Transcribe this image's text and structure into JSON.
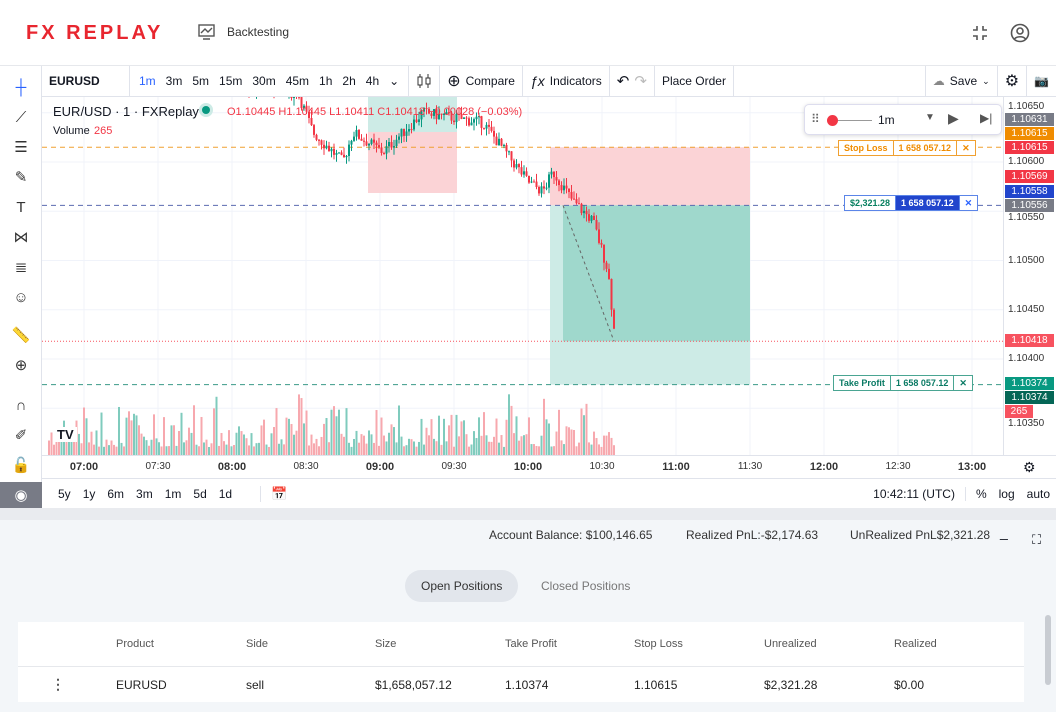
{
  "header": {
    "logo": "FX REPLAY",
    "section": "Backtesting"
  },
  "toolbar": {
    "symbol": "EURUSD",
    "timeframes": [
      "1m",
      "3m",
      "5m",
      "15m",
      "30m",
      "45m",
      "1h",
      "2h",
      "4h"
    ],
    "active_tf": "1m",
    "compare": "Compare",
    "indicators": "Indicators",
    "place_order": "Place Order",
    "save": "Save"
  },
  "legend": {
    "title": "EUR/USD · 1 · FXReplay",
    "ohlc": "O1.10445 H1.10445 L1.10411 C1.10418 −0.00028 (−0.03%)",
    "volume_label": "Volume",
    "volume_value": "265"
  },
  "replay": {
    "speed": "1m"
  },
  "orders": {
    "stop_loss_label": "Stop Loss",
    "stop_loss_qty": "1 658 057.12",
    "position_pnl": "$2,321.28",
    "position_qty": "1 658 057.12",
    "take_profit_label": "Take Profit",
    "take_profit_qty": "1 658 057.12"
  },
  "price_axis": {
    "labels": [
      "1.10650",
      "1.10600",
      "1.10550",
      "1.10500",
      "1.10450",
      "1.10400",
      "1.10350"
    ],
    "tags": [
      {
        "v": "1.10631",
        "c": "#787b86"
      },
      {
        "v": "1.10615",
        "c": "#f08c00"
      },
      {
        "v": "1.10615",
        "c": "#f23645"
      },
      {
        "v": "1.10569",
        "c": "#f23645"
      },
      {
        "v": "1.10558",
        "c": "#2145cc"
      },
      {
        "v": "1.10556",
        "c": "#787b86"
      },
      {
        "v": "1.10418",
        "c": "#f7525f"
      },
      {
        "v": "1.10374",
        "c": "#089981"
      },
      {
        "v": "1.10374",
        "c": "#056656"
      },
      {
        "v": "265",
        "c": "#f7525f"
      }
    ]
  },
  "time_axis": [
    "07:00",
    "07:30",
    "08:00",
    "08:30",
    "09:00",
    "09:30",
    "10:00",
    "10:30",
    "11:00",
    "11:30",
    "12:00",
    "12:30",
    "13:00"
  ],
  "range_bar": {
    "ranges": [
      "5y",
      "1y",
      "6m",
      "3m",
      "1m",
      "5d",
      "1d"
    ],
    "clock": "10:42:11 (UTC)",
    "percent": "%",
    "log": "log",
    "auto": "auto"
  },
  "account": {
    "balance": "Account Balance: $100,146.65",
    "realized": "Realized PnL:-$2,174.63",
    "unrealized": "UnRealized PnL$2,321.28"
  },
  "tabs": {
    "open": "Open Positions",
    "closed": "Closed Positions"
  },
  "positions": {
    "columns": [
      "Product",
      "Side",
      "Size",
      "Take Profit",
      "Stop Loss",
      "Unrealized",
      "Realized"
    ],
    "rows": [
      [
        "EURUSD",
        "sell",
        "$1,658,057.12",
        "1.10374",
        "1.10615",
        "$2,321.28",
        "$0.00"
      ]
    ]
  },
  "colors": {
    "brand": "#e8262f",
    "up": "#089981",
    "down": "#f23645",
    "accent": "#2962ff"
  }
}
